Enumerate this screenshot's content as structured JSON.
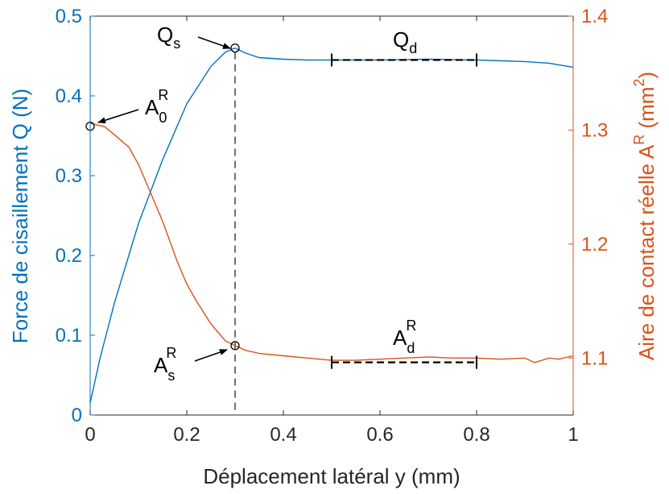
{
  "chart_data": {
    "type": "line",
    "title": "",
    "xlabel": "Déplacement latéral y (mm)",
    "ylabel_left": "Force de cisaillement Q (N)",
    "ylabel_right": {
      "main": "Aire de contact réelle A",
      "sup1": "R",
      "open": " (mm",
      "sup2": "2",
      "close": ")"
    },
    "xlim": [
      0,
      1
    ],
    "ylim_left": [
      0,
      0.5
    ],
    "ylim_right": [
      1.05,
      1.4
    ],
    "xticks": [
      "0",
      "0.2",
      "0.4",
      "0.6",
      "0.8",
      "1"
    ],
    "yticks_left": [
      "0",
      "0.1",
      "0.2",
      "0.3",
      "0.4",
      "0.5"
    ],
    "yticks_right": [
      "1.1",
      "1.2",
      "1.3",
      "1.4"
    ],
    "grid": false,
    "colors": {
      "left": "#0072BD",
      "right": "#D95319",
      "axis": "#262626",
      "dashed_ref": "#707070"
    },
    "series": [
      {
        "axis": "left",
        "x": [
          0,
          0.02,
          0.05,
          0.08,
          0.1,
          0.15,
          0.2,
          0.25,
          0.28,
          0.3,
          0.32,
          0.35,
          0.4,
          0.45,
          0.5,
          0.55,
          0.6,
          0.7,
          0.8,
          0.9,
          0.95,
          1.0
        ],
        "y": [
          0.015,
          0.07,
          0.14,
          0.2,
          0.24,
          0.32,
          0.39,
          0.437,
          0.455,
          0.46,
          0.454,
          0.448,
          0.446,
          0.445,
          0.445,
          0.445,
          0.445,
          0.446,
          0.445,
          0.443,
          0.441,
          0.436
        ]
      },
      {
        "axis": "right",
        "x": [
          0,
          0.03,
          0.05,
          0.08,
          0.1,
          0.12,
          0.15,
          0.18,
          0.2,
          0.22,
          0.25,
          0.27,
          0.28,
          0.3,
          0.32,
          0.35,
          0.4,
          0.45,
          0.5,
          0.55,
          0.6,
          0.65,
          0.7,
          0.75,
          0.8,
          0.85,
          0.9,
          0.92,
          0.95,
          0.97,
          1.0
        ],
        "y": [
          1.306,
          1.303,
          1.296,
          1.285,
          1.27,
          1.25,
          1.22,
          1.185,
          1.165,
          1.15,
          1.13,
          1.12,
          1.115,
          1.111,
          1.107,
          1.104,
          1.102,
          1.1,
          1.098,
          1.098,
          1.099,
          1.1,
          1.101,
          1.1,
          1.1,
          1.099,
          1.1,
          1.096,
          1.1,
          1.099,
          1.102
        ]
      }
    ],
    "markers": [
      {
        "axis": "left",
        "x": 0.3,
        "y": 0.46
      },
      {
        "axis": "left",
        "x": 0.0,
        "y": 0.362
      },
      {
        "axis": "left",
        "x": 0.3,
        "y": 0.087
      }
    ],
    "vertical_reference": {
      "x": 0.3
    },
    "horizontal_segments": [
      {
        "axis": "left",
        "x0": 0.5,
        "x1": 0.8,
        "y": 0.445
      },
      {
        "axis": "left",
        "x0": 0.5,
        "x1": 0.8,
        "y": 0.066
      }
    ],
    "annotations": [
      {
        "id": "qs",
        "base": "Q",
        "sub": "s",
        "sup": ""
      },
      {
        "id": "a0r",
        "base": "A",
        "sub": "0",
        "sup": "R"
      },
      {
        "id": "asr",
        "base": "A",
        "sub": "s",
        "sup": "R"
      },
      {
        "id": "qd",
        "base": "Q",
        "sub": "d",
        "sup": ""
      },
      {
        "id": "adr",
        "base": "A",
        "sub": "d",
        "sup": "R"
      }
    ]
  }
}
